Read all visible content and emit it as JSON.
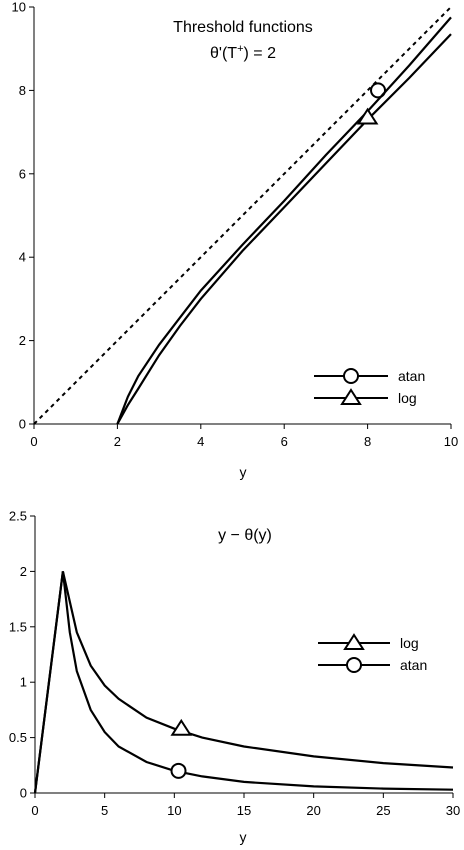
{
  "chart_data": [
    {
      "type": "line",
      "title": "Threshold functions",
      "subtitle_prefix": "θ'(T",
      "subtitle_sup": "+",
      "subtitle_suffix": ") = 2",
      "xlabel": "y",
      "ylabel": "",
      "xlim": [
        0,
        10
      ],
      "ylim": [
        0,
        10
      ],
      "xticks": [
        "0",
        "2",
        "4",
        "6",
        "8",
        "10"
      ],
      "yticks": [
        "0",
        "2",
        "4",
        "6",
        "8",
        "10"
      ],
      "legend_position": "bottom-right",
      "series": [
        {
          "name": "atan",
          "marker": "circle",
          "x": [
            2,
            2.25,
            2.5,
            3,
            3.5,
            4,
            5,
            6,
            7,
            8,
            8.25,
            9,
            10
          ],
          "y": [
            0,
            0.45,
            0.85,
            1.65,
            2.35,
            3.0,
            4.15,
            5.2,
            6.25,
            7.3,
            7.55,
            8.3,
            9.35
          ],
          "marker_at": [
            8.25,
            8.0
          ]
        },
        {
          "name": "log",
          "marker": "triangle",
          "x": [
            2,
            2.25,
            2.5,
            3,
            3.5,
            4,
            5,
            6,
            7,
            8,
            9,
            10
          ],
          "y": [
            0,
            0.65,
            1.15,
            1.9,
            2.55,
            3.2,
            4.3,
            5.35,
            6.45,
            7.5,
            8.6,
            9.75
          ],
          "marker_at": [
            8.0,
            7.35
          ]
        },
        {
          "name": "",
          "style": "dashed",
          "x": [
            0,
            10
          ],
          "y": [
            0,
            10
          ]
        }
      ]
    },
    {
      "type": "line",
      "title": "y − θ(y)",
      "xlabel": "y",
      "ylabel": "",
      "xlim": [
        0,
        30
      ],
      "ylim": [
        0,
        2.5
      ],
      "xticks": [
        "0",
        "5",
        "10",
        "15",
        "20",
        "25",
        "30"
      ],
      "yticks": [
        "0",
        "0.5",
        "1",
        "1.5",
        "2",
        "2.5"
      ],
      "legend_position": "right",
      "series": [
        {
          "name": "log",
          "marker": "triangle",
          "x": [
            0,
            2,
            3,
            4,
            5,
            6,
            8,
            10,
            12,
            15,
            20,
            25,
            30
          ],
          "y": [
            0,
            2.0,
            1.45,
            1.15,
            0.97,
            0.85,
            0.68,
            0.58,
            0.5,
            0.42,
            0.33,
            0.27,
            0.23
          ],
          "marker_at": [
            10.5,
            0.58
          ]
        },
        {
          "name": "atan",
          "marker": "circle",
          "x": [
            0,
            2,
            2.5,
            3,
            4,
            5,
            6,
            8,
            10,
            12,
            15,
            20,
            25,
            30
          ],
          "y": [
            0,
            2.0,
            1.45,
            1.1,
            0.75,
            0.55,
            0.42,
            0.28,
            0.2,
            0.15,
            0.1,
            0.06,
            0.04,
            0.03
          ],
          "marker_at": [
            10.3,
            0.2
          ]
        }
      ]
    }
  ]
}
